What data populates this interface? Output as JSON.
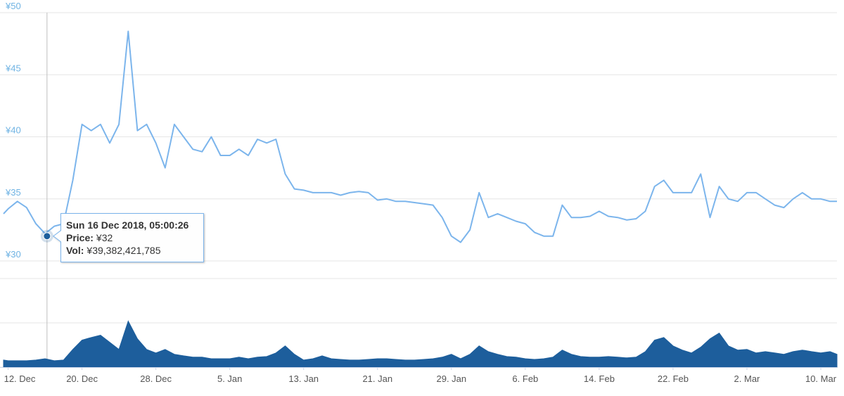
{
  "chart_data": {
    "type": "line",
    "x": [
      "2018-12-11T12:00",
      "2018-12-12T00:00",
      "2018-12-13T00:00",
      "2018-12-14T00:00",
      "2018-12-15T00:00",
      "2018-12-16T00:00",
      "2018-12-17T00:00",
      "2018-12-18T00:00",
      "2018-12-19T00:00",
      "2018-12-20T00:00",
      "2018-12-21T00:00",
      "2018-12-22T00:00",
      "2018-12-23T00:00",
      "2018-12-24T00:00",
      "2018-12-25T00:00",
      "2018-12-26T00:00",
      "2018-12-27T00:00",
      "2018-12-28T00:00",
      "2018-12-29T00:00",
      "2018-12-30T00:00",
      "2018-12-31T00:00",
      "2019-01-01T00:00",
      "2019-01-02T00:00",
      "2019-01-03T00:00",
      "2019-01-04T00:00",
      "2019-01-05T00:00",
      "2019-01-06T00:00",
      "2019-01-07T00:00",
      "2019-01-08T00:00",
      "2019-01-09T00:00",
      "2019-01-10T00:00",
      "2019-01-11T00:00",
      "2019-01-12T00:00",
      "2019-01-13T00:00",
      "2019-01-14T00:00",
      "2019-01-15T00:00",
      "2019-01-16T00:00",
      "2019-01-17T00:00",
      "2019-01-18T00:00",
      "2019-01-19T00:00",
      "2019-01-20T00:00",
      "2019-01-21T00:00",
      "2019-01-22T00:00",
      "2019-01-23T00:00",
      "2019-01-24T00:00",
      "2019-01-25T00:00",
      "2019-01-26T00:00",
      "2019-01-27T00:00",
      "2019-01-28T00:00",
      "2019-01-29T00:00",
      "2019-01-30T00:00",
      "2019-01-31T00:00",
      "2019-02-01T00:00",
      "2019-02-02T00:00",
      "2019-02-03T00:00",
      "2019-02-04T00:00",
      "2019-02-05T00:00",
      "2019-02-06T00:00",
      "2019-02-07T00:00",
      "2019-02-08T00:00",
      "2019-02-09T00:00",
      "2019-02-10T00:00",
      "2019-02-11T00:00",
      "2019-02-12T00:00",
      "2019-02-13T00:00",
      "2019-02-14T00:00",
      "2019-02-15T00:00",
      "2019-02-16T00:00",
      "2019-02-17T00:00",
      "2019-02-18T00:00",
      "2019-02-19T00:00",
      "2019-02-20T00:00",
      "2019-02-21T00:00",
      "2019-02-22T00:00",
      "2019-02-23T00:00",
      "2019-02-24T00:00",
      "2019-02-25T00:00",
      "2019-02-26T00:00",
      "2019-02-27T00:00",
      "2019-02-28T00:00",
      "2019-03-01T00:00",
      "2019-03-02T00:00",
      "2019-03-03T00:00",
      "2019-03-04T00:00",
      "2019-03-05T00:00",
      "2019-03-06T00:00",
      "2019-03-07T00:00",
      "2019-03-08T00:00",
      "2019-03-09T00:00",
      "2019-03-10T00:00",
      "2019-03-11T00:00",
      "2019-03-11T18:00"
    ],
    "series": [
      {
        "color": "#7cb5ec",
        "values": [
          33.8,
          34.2,
          34.8,
          34.3,
          33,
          32.2,
          32.8,
          33,
          36.5,
          41,
          40.5,
          41,
          39.5,
          41,
          48.5,
          40.5,
          41,
          39.5,
          37.5,
          41,
          40,
          39,
          38.8,
          40,
          38.5,
          38.5,
          39,
          38.5,
          39.8,
          39.5,
          39.8,
          37,
          35.8,
          35.7,
          35.5,
          35.5,
          35.5,
          35.3,
          35.5,
          35.6,
          35.5,
          34.9,
          35,
          34.8,
          34.8,
          34.7,
          34.6,
          34.5,
          33.5,
          32,
          31.5,
          32.5,
          35.5,
          33.5,
          33.8,
          33.5,
          33.2,
          33,
          32.3,
          32,
          32,
          34.5,
          33.5,
          33.5,
          33.6,
          34,
          33.6,
          33.5,
          33.3,
          33.4,
          34,
          36,
          36.5,
          35.5,
          35.5,
          35.5,
          37,
          33.5,
          36,
          35,
          34.8,
          35.5,
          35.5,
          35,
          34.5,
          34.3,
          35,
          35.5,
          35,
          35,
          34.8,
          34.8
        ]
      },
      {
        "type": "area",
        "axis": "y2",
        "color": "#1d5e9c",
        "values": [
          32000000000.0,
          29000000000.0,
          29000000000.0,
          29000000000.0,
          32000000000.0,
          38000000000.0,
          29000000000.0,
          32000000000.0,
          80000000000.0,
          122000000000.0,
          134000000000.0,
          144000000000.0,
          112000000000.0,
          80000000000.0,
          208000000000.0,
          128000000000.0,
          80000000000.0,
          64000000000.0,
          80000000000.0,
          58000000000.0,
          51000000000.0,
          45000000000.0,
          45000000000.0,
          38000000000.0,
          38000000000.0,
          38000000000.0,
          45000000000.0,
          38000000000.0,
          45000000000.0,
          48000000000.0,
          64000000000.0,
          96000000000.0,
          58000000000.0,
          32000000000.0,
          38000000000.0,
          51000000000.0,
          38000000000.0,
          35000000000.0,
          32000000000.0,
          32000000000.0,
          35000000000.0,
          38000000000.0,
          38000000000.0,
          35000000000.0,
          32000000000.0,
          32000000000.0,
          35000000000.0,
          38000000000.0,
          45000000000.0,
          58000000000.0,
          38000000000.0,
          58000000000.0,
          96000000000.0,
          70000000000.0,
          58000000000.0,
          48000000000.0,
          45000000000.0,
          38000000000.0,
          35000000000.0,
          38000000000.0,
          45000000000.0,
          77000000000.0,
          58000000000.0,
          48000000000.0,
          45000000000.0,
          45000000000.0,
          48000000000.0,
          45000000000.0,
          42000000000.0,
          45000000000.0,
          70000000000.0,
          122000000000.0,
          134000000000.0,
          96000000000.0,
          77000000000.0,
          64000000000.0,
          90000000000.0,
          128000000000.0,
          154000000000.0,
          96000000000.0,
          77000000000.0,
          80000000000.0,
          64000000000.0,
          70000000000.0,
          64000000000.0,
          58000000000.0,
          70000000000.0,
          77000000000.0,
          70000000000.0,
          64000000000.0,
          70000000000.0,
          58000000000.0
        ]
      }
    ],
    "xlim": [
      "2018-12-11T12:00",
      "2019-03-11T18:00"
    ],
    "xticks": [
      {
        "value": "2018-12-12T00:00",
        "label": "12. Dec"
      },
      {
        "value": "2018-12-20T00:00",
        "label": "20. Dec"
      },
      {
        "value": "2018-12-28T00:00",
        "label": "28. Dec"
      },
      {
        "value": "2019-01-05T00:00",
        "label": "5. Jan"
      },
      {
        "value": "2019-01-13T00:00",
        "label": "13. Jan"
      },
      {
        "value": "2019-01-21T00:00",
        "label": "21. Jan"
      },
      {
        "value": "2019-01-29T00:00",
        "label": "29. Jan"
      },
      {
        "value": "2019-02-06T00:00",
        "label": "6. Feb"
      },
      {
        "value": "2019-02-14T00:00",
        "label": "14. Feb"
      },
      {
        "value": "2019-02-22T00:00",
        "label": "22. Feb"
      },
      {
        "value": "2019-03-02T00:00",
        "label": "2. Mar"
      },
      {
        "value": "2019-03-10T00:00",
        "label": "10. Mar"
      }
    ],
    "ylim": [
      30,
      50
    ],
    "yticks": [
      {
        "value": 30,
        "label": "¥30"
      },
      {
        "value": 35,
        "label": "¥35"
      },
      {
        "value": 40,
        "label": "¥40"
      },
      {
        "value": 45,
        "label": "¥45"
      },
      {
        "value": 50,
        "label": "¥50"
      }
    ],
    "y2lim": [
      0,
      400000000000.0
    ],
    "y2ticks": [
      0,
      200000000000.0,
      400000000000.0
    ],
    "grid": true,
    "tooltip": {
      "x": "2018-12-16T05:00:26",
      "date_label": "Sun 16 Dec 2018, 05:00:26",
      "price_name": "Price:",
      "price": {
        "value": 32,
        "label": "¥32"
      },
      "vol_name": "Vol:",
      "vol": "¥39,382,421,785"
    }
  }
}
